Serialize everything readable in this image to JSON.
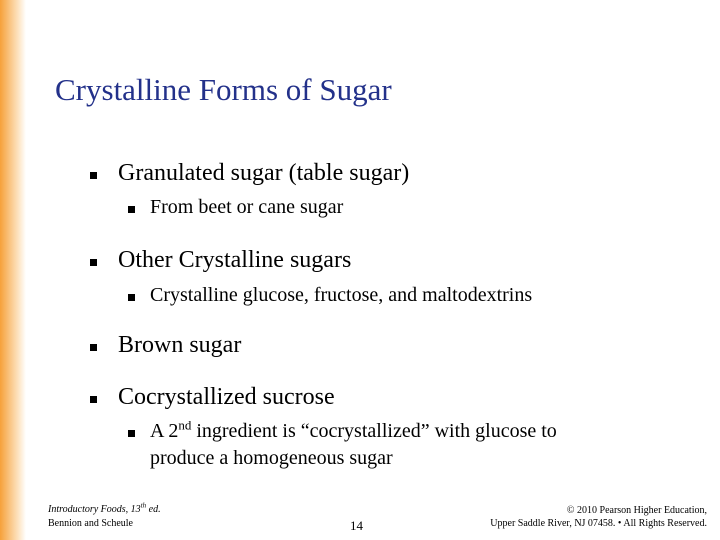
{
  "title": "Crystalline Forms of Sugar",
  "bullets": [
    {
      "text": "Granulated sugar (table sugar)",
      "sub": [
        {
          "text": "From beet or cane sugar"
        }
      ]
    },
    {
      "text": "Other Crystalline sugars",
      "sub": [
        {
          "text": "Crystalline glucose, fructose, and maltodextrins"
        }
      ]
    },
    {
      "text": "Brown sugar"
    },
    {
      "text": "Cocrystallized sucrose",
      "sub": [
        {
          "before": "A 2",
          "sup": "nd",
          "after": " ingredient is “cocrystallized” with glucose to",
          "line2": "produce a homogeneous sugar"
        }
      ]
    }
  ],
  "footer": {
    "left_before": "Introductory Foods, 13",
    "left_sup": "th",
    "left_after": " ed.",
    "left_line2": "Bennion and Scheule",
    "page": "14",
    "right_line1": "© 2010 Pearson Higher Education,",
    "right_line2": "Upper Saddle River, NJ 07458. • All Rights Reserved."
  }
}
